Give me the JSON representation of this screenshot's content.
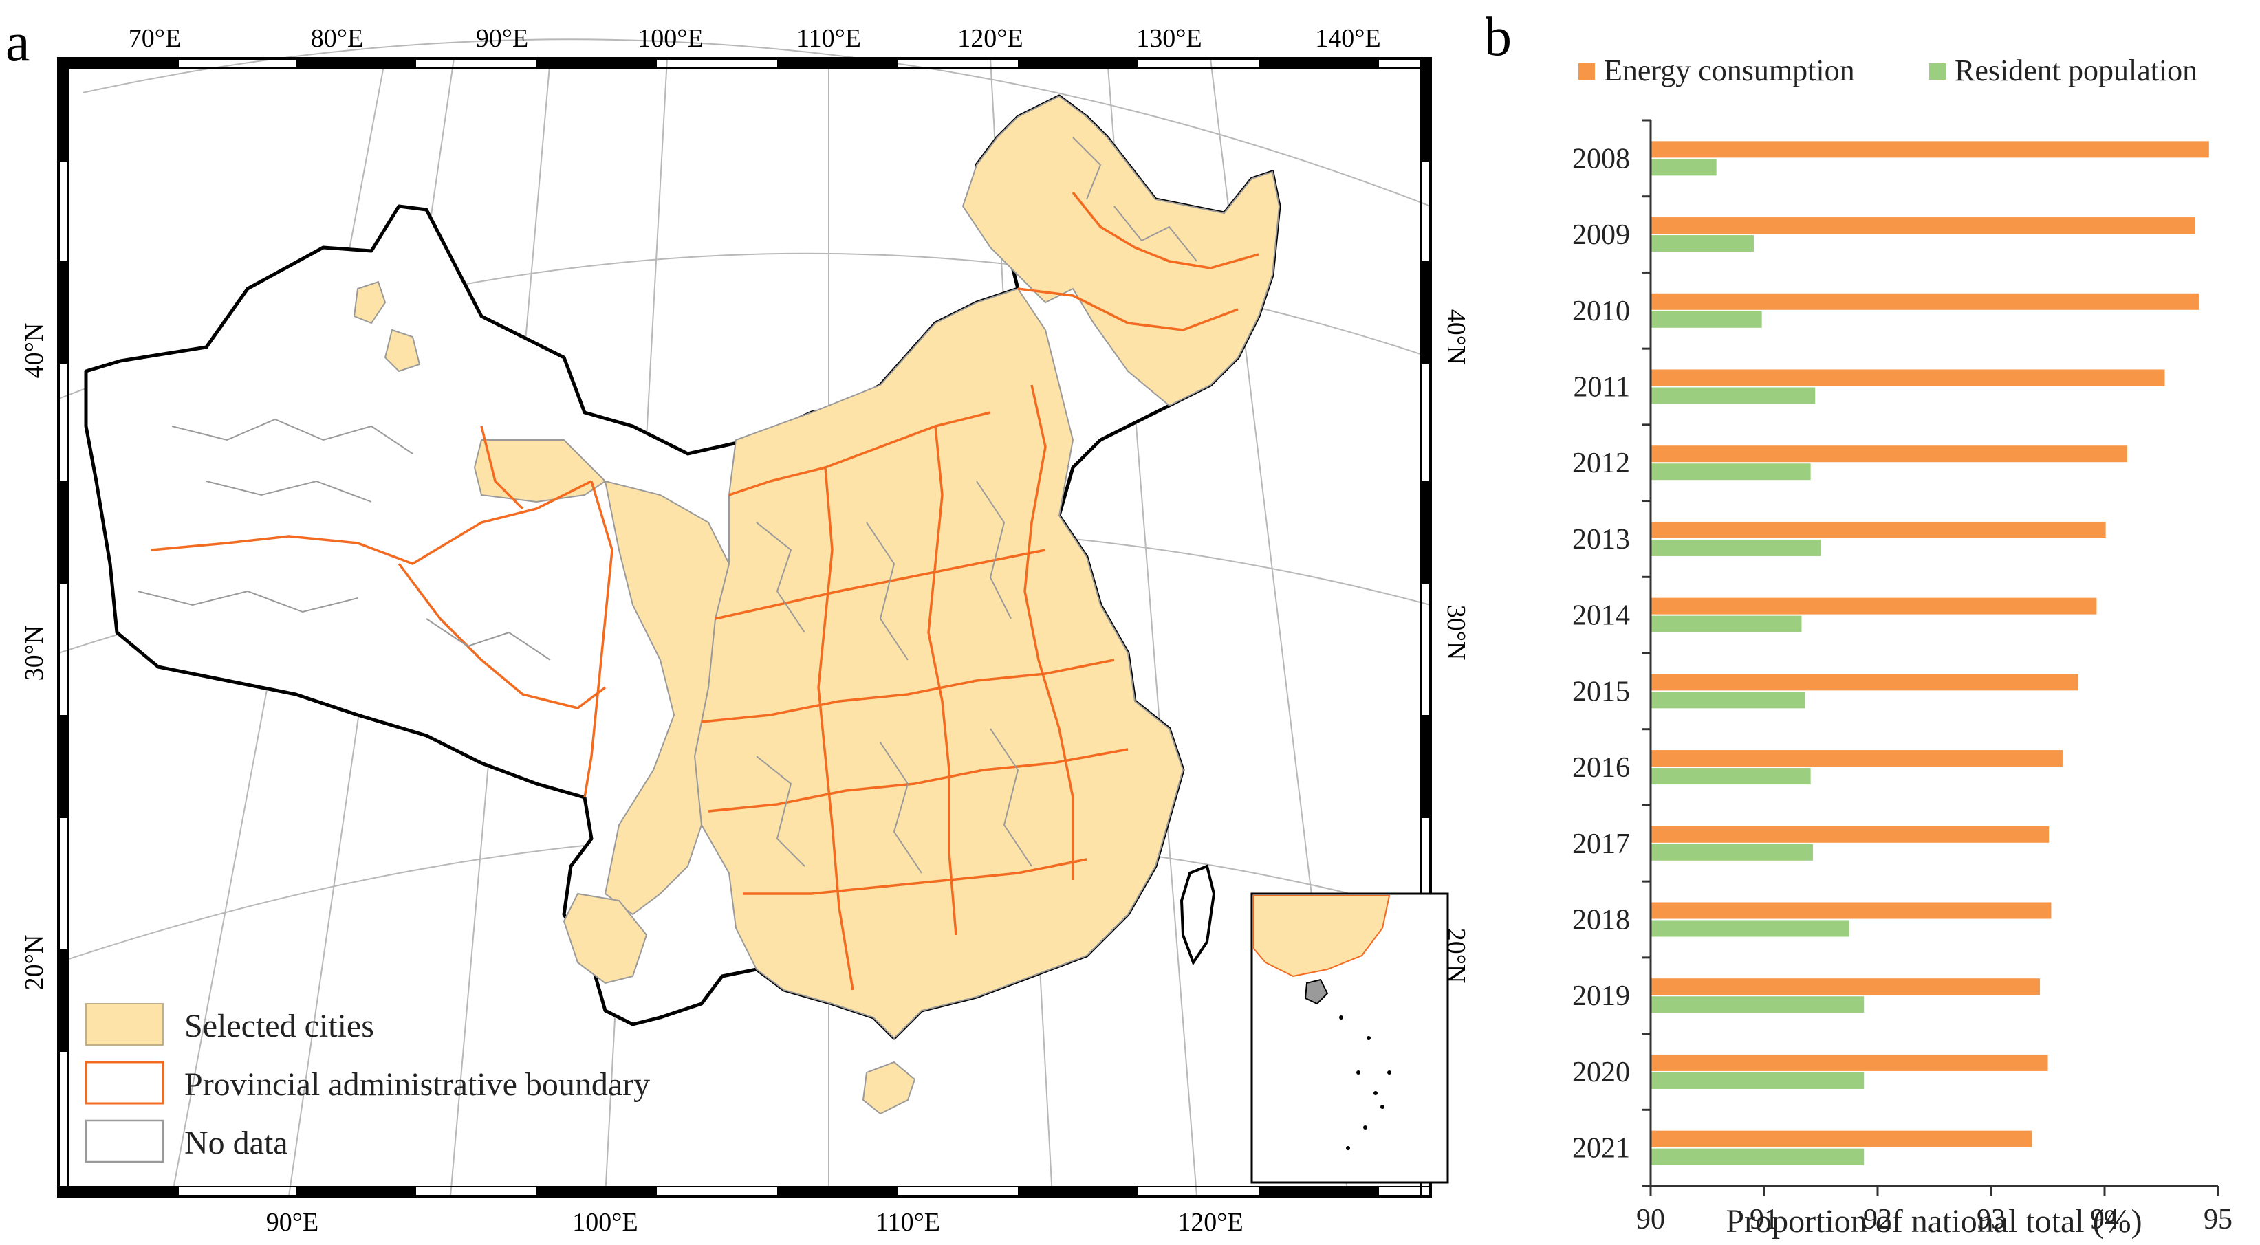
{
  "panels": {
    "map_letter": "a",
    "chart_letter": "b"
  },
  "map": {
    "lon_labels_top": [
      "70°E",
      "80°E",
      "90°E",
      "100°E",
      "110°E",
      "120°E",
      "130°E",
      "140°E"
    ],
    "lon_labels_bottom": [
      "90°E",
      "100°E",
      "110°E",
      "120°E"
    ],
    "lat_labels_left": [
      "40°N",
      "30°N",
      "20°N"
    ],
    "lat_labels_right": [
      "40°N",
      "30°N",
      "20°N"
    ],
    "legend": [
      {
        "label": "Selected cities",
        "swatch": "selected"
      },
      {
        "label": "Provincial administrative boundary",
        "swatch": "boundary"
      },
      {
        "label": "No data",
        "swatch": "nodata"
      }
    ],
    "colors": {
      "selected_fill": "#fde3a7",
      "province_line": "#f26b21",
      "city_line": "#9a9a9a",
      "country_line": "#000000",
      "graticule": "#b5b5b5"
    }
  },
  "chart_data": {
    "type": "bar",
    "orientation": "horizontal",
    "categories": [
      "2008",
      "2009",
      "2010",
      "2011",
      "2012",
      "2013",
      "2014",
      "2015",
      "2016",
      "2017",
      "2018",
      "2019",
      "2020",
      "2021"
    ],
    "series": [
      {
        "name": "Energy consumption",
        "color": "#f79646",
        "values": [
          94.92,
          94.8,
          94.83,
          94.53,
          94.2,
          94.01,
          93.93,
          93.77,
          93.63,
          93.51,
          93.53,
          93.43,
          93.5,
          93.36
        ]
      },
      {
        "name": "Resident population",
        "color": "#9bcf7f",
        "values": [
          90.58,
          90.91,
          90.98,
          91.45,
          91.41,
          91.5,
          91.33,
          91.36,
          91.41,
          91.43,
          91.75,
          91.88,
          91.88,
          91.88
        ]
      }
    ],
    "xlabel": "Proportion of national total (%)",
    "xlim": [
      90,
      95
    ],
    "xticks": [
      "90",
      "91",
      "92",
      "93",
      "94",
      "95"
    ],
    "legend_position": "top",
    "grid": false
  }
}
